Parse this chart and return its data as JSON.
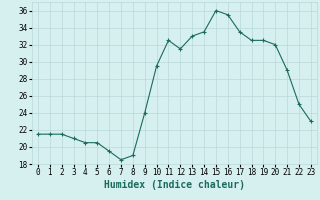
{
  "x": [
    0,
    1,
    2,
    3,
    4,
    5,
    6,
    7,
    8,
    9,
    10,
    11,
    12,
    13,
    14,
    15,
    16,
    17,
    18,
    19,
    20,
    21,
    22,
    23
  ],
  "y": [
    21.5,
    21.5,
    21.5,
    21.0,
    20.5,
    20.5,
    19.5,
    18.5,
    19.0,
    24.0,
    29.5,
    32.5,
    31.5,
    33.0,
    33.5,
    36.0,
    35.5,
    33.5,
    32.5,
    32.5,
    32.0,
    29.0,
    25.0,
    23.0
  ],
  "line_color": "#1a6b5a",
  "marker": "+",
  "marker_size": 3,
  "line_width": 0.8,
  "bg_color": "#d6f0f0",
  "grid_color": "#b8d8d8",
  "xlabel": "Humidex (Indice chaleur)",
  "xlabel_fontsize": 7,
  "xlim": [
    -0.5,
    23.5
  ],
  "ylim": [
    18,
    37
  ],
  "yticks": [
    18,
    20,
    22,
    24,
    26,
    28,
    30,
    32,
    34,
    36
  ],
  "xticks": [
    0,
    1,
    2,
    3,
    4,
    5,
    6,
    7,
    8,
    9,
    10,
    11,
    12,
    13,
    14,
    15,
    16,
    17,
    18,
    19,
    20,
    21,
    22,
    23
  ],
  "tick_fontsize": 5.5
}
